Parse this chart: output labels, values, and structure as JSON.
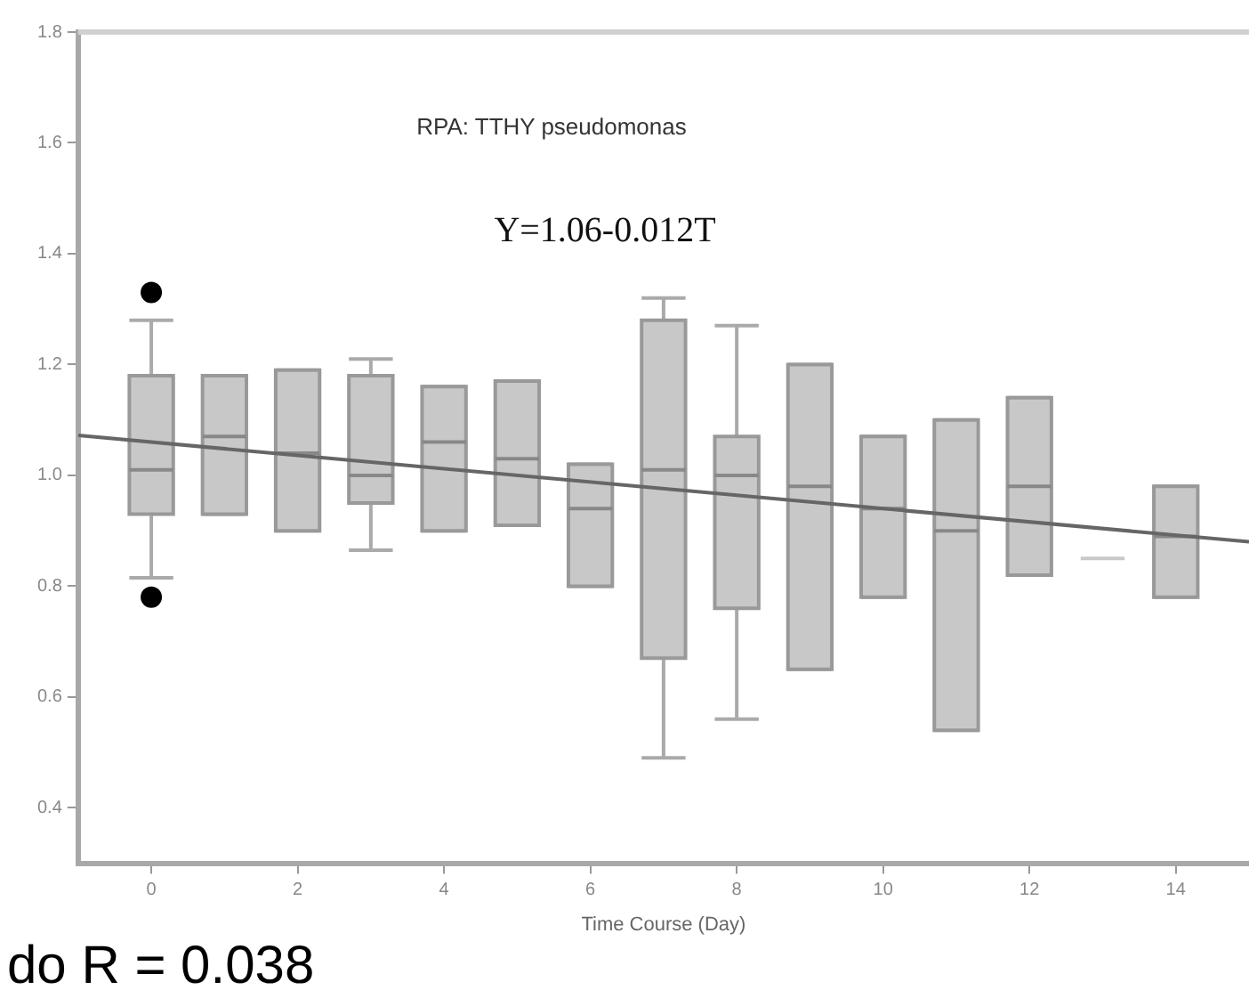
{
  "chart_data": {
    "type": "box",
    "title": "RPA: TTHY pseudomonas",
    "xlabel": "Time Course (Day)",
    "annotations": [
      "Y=1.06-0.012T",
      "do R = 0.038"
    ],
    "x": [
      0,
      1,
      2,
      3,
      4,
      5,
      6,
      7,
      8,
      9,
      10,
      11,
      12,
      13,
      14
    ],
    "color": "#c8c8c8",
    "boxes": [
      {
        "low": 0.815,
        "q1": 0.93,
        "median": 1.01,
        "q3": 1.18,
        "high": 1.28,
        "outliers": [
          1.33,
          0.78
        ]
      },
      {
        "low": 0.93,
        "q1": 0.93,
        "median": 1.07,
        "q3": 1.18,
        "high": 1.18
      },
      {
        "low": 0.9,
        "q1": 0.9,
        "median": 1.04,
        "q3": 1.19,
        "high": 1.19
      },
      {
        "low": 0.865,
        "q1": 0.95,
        "median": 1.0,
        "q3": 1.18,
        "high": 1.21
      },
      {
        "low": 0.9,
        "q1": 0.9,
        "median": 1.06,
        "q3": 1.16,
        "high": 1.16
      },
      {
        "low": 0.91,
        "q1": 0.91,
        "median": 1.03,
        "q3": 1.17,
        "high": 1.17
      },
      {
        "low": 0.8,
        "q1": 0.8,
        "median": 0.94,
        "q3": 1.02,
        "high": 1.02
      },
      {
        "low": 0.49,
        "q1": 0.67,
        "median": 1.01,
        "q3": 1.28,
        "high": 1.32
      },
      {
        "low": 0.56,
        "q1": 0.76,
        "median": 1.0,
        "q3": 1.07,
        "high": 1.27
      },
      {
        "low": 0.65,
        "q1": 0.65,
        "median": 0.98,
        "q3": 1.2,
        "high": 1.2
      },
      {
        "low": 0.78,
        "q1": 0.78,
        "median": 0.94,
        "q3": 1.07,
        "high": 1.07
      },
      {
        "low": 0.54,
        "q1": 0.54,
        "median": 0.9,
        "q3": 1.1,
        "high": 1.1
      },
      {
        "low": 0.82,
        "q1": 0.82,
        "median": 0.98,
        "q3": 1.14,
        "high": 1.14
      },
      {
        "low": 0.85,
        "q1": 0.85,
        "median": 0.85,
        "q3": 0.85,
        "high": 0.85
      },
      {
        "low": 0.78,
        "q1": 0.78,
        "median": 0.89,
        "q3": 0.98,
        "high": 0.98
      }
    ],
    "series": [
      {
        "type": "line",
        "x": [
          -1,
          15
        ],
        "values": [
          1.072,
          0.88
        ],
        "color": "#666666"
      }
    ],
    "xlim": [
      -1,
      15
    ],
    "ylim": [
      0.3,
      1.8
    ],
    "xticks": [
      0,
      2,
      4,
      6,
      8,
      10,
      12,
      14
    ],
    "yticks": [
      0.4,
      0.6,
      0.8,
      {
        "value": 1,
        "label": "1.0"
      },
      1.2,
      1.4,
      1.6,
      1.8
    ],
    "grid": false,
    "legend": false
  }
}
